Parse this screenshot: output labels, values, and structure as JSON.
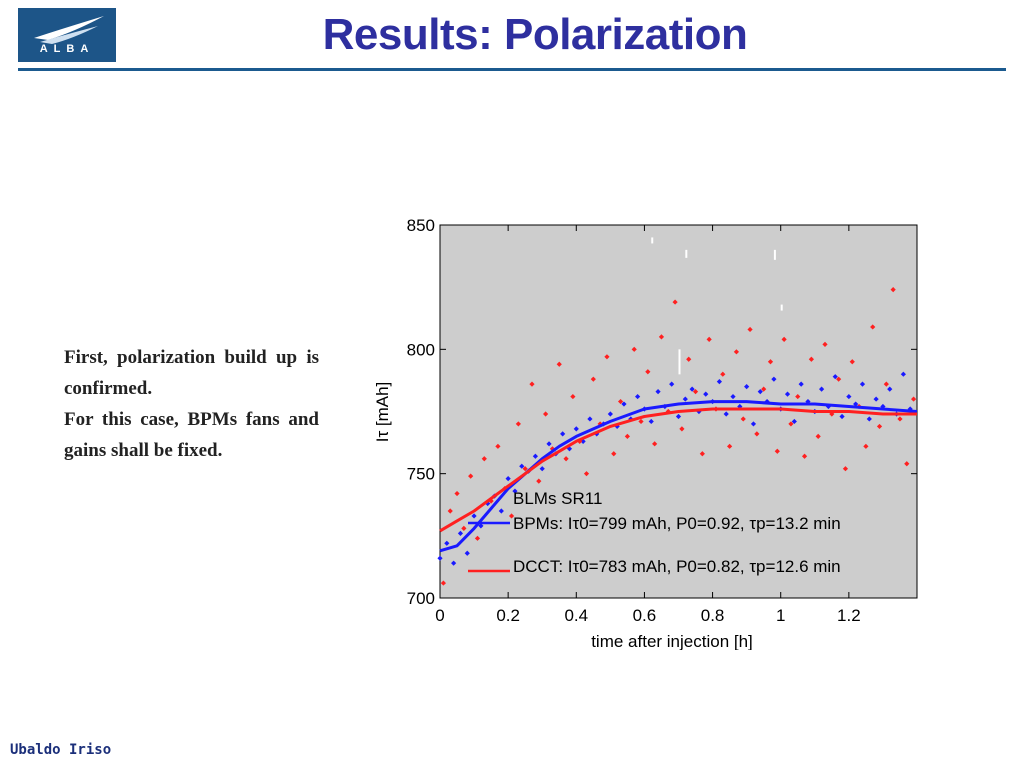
{
  "slide": {
    "logo_text": "ALBA",
    "title": "Results: Polarization",
    "body": [
      "First, polarization build up is confirmed.",
      "For this case, BPMs fans and gains shall be fixed."
    ],
    "footer": "Ubaldo Iriso"
  },
  "colors": {
    "title": "#2e2f9f",
    "rule": "#1b5a8f",
    "plot_background": "#cdcdcd",
    "bpm_series": "#1a1aff",
    "dcct_series": "#ff2020"
  },
  "chart_data": {
    "type": "scatter",
    "xlabel": "time after injection [h]",
    "ylabel": "Iτ [mAh]",
    "xlim": [
      0,
      1.4
    ],
    "ylim": [
      700,
      850
    ],
    "xticks": [
      "0",
      "0.2",
      "0.4",
      "0.6",
      "0.8",
      "1",
      "1.2"
    ],
    "yticks": [
      "700",
      "750",
      "800",
      "850"
    ],
    "legend": {
      "title": "BLMs SR11",
      "entries": [
        {
          "series": "BPMs",
          "label": "BPMs: Iτ0=799 mAh, P0=0.92, τp=13.2 min"
        },
        {
          "series": "DCCT",
          "label": "DCCT: Iτ0=783 mAh, P0=0.82, τp=12.6 min"
        }
      ]
    },
    "series": [
      {
        "name": "BPMs",
        "color": "#1a1aff",
        "fit": {
          "x": [
            0,
            0.05,
            0.1,
            0.15,
            0.2,
            0.25,
            0.3,
            0.35,
            0.4,
            0.5,
            0.6,
            0.7,
            0.8,
            0.9,
            1.0,
            1.1,
            1.2,
            1.3,
            1.4
          ],
          "y": [
            719,
            721,
            728,
            736,
            744,
            750,
            756,
            761,
            765,
            771,
            776,
            778,
            779,
            779,
            778,
            778,
            777,
            776,
            775
          ]
        },
        "points_x": [
          0.0,
          0.02,
          0.04,
          0.06,
          0.08,
          0.1,
          0.12,
          0.14,
          0.16,
          0.18,
          0.2,
          0.22,
          0.24,
          0.26,
          0.28,
          0.3,
          0.32,
          0.34,
          0.36,
          0.38,
          0.4,
          0.42,
          0.44,
          0.46,
          0.48,
          0.5,
          0.52,
          0.54,
          0.56,
          0.58,
          0.6,
          0.62,
          0.64,
          0.66,
          0.68,
          0.7,
          0.72,
          0.74,
          0.76,
          0.78,
          0.8,
          0.82,
          0.84,
          0.86,
          0.88,
          0.9,
          0.92,
          0.94,
          0.96,
          0.98,
          1.0,
          1.02,
          1.04,
          1.06,
          1.08,
          1.1,
          1.12,
          1.14,
          1.16,
          1.18,
          1.2,
          1.22,
          1.24,
          1.26,
          1.28,
          1.3,
          1.32,
          1.34,
          1.36,
          1.38
        ],
        "points_y": [
          716,
          722,
          714,
          726,
          718,
          733,
          729,
          738,
          741,
          735,
          748,
          743,
          753,
          751,
          757,
          752,
          762,
          758,
          766,
          760,
          768,
          763,
          772,
          766,
          770,
          774,
          769,
          778,
          772,
          781,
          776,
          771,
          783,
          777,
          786,
          773,
          780,
          784,
          775,
          782,
          779,
          787,
          774,
          781,
          777,
          785,
          770,
          783,
          779,
          788,
          776,
          782,
          771,
          786,
          779,
          775,
          784,
          777,
          789,
          773,
          781,
          778,
          786,
          772,
          780,
          777,
          784,
          774,
          790,
          776
        ]
      },
      {
        "name": "DCCT",
        "color": "#ff2020",
        "fit": {
          "x": [
            0,
            0.05,
            0.1,
            0.15,
            0.2,
            0.25,
            0.3,
            0.35,
            0.4,
            0.5,
            0.6,
            0.7,
            0.8,
            0.9,
            1.0,
            1.1,
            1.2,
            1.3,
            1.4
          ],
          "y": [
            727,
            731,
            735,
            740,
            745,
            750,
            755,
            759,
            763,
            769,
            773,
            775,
            776,
            776,
            776,
            775,
            775,
            774,
            774
          ]
        },
        "points_x": [
          0.01,
          0.03,
          0.05,
          0.07,
          0.09,
          0.11,
          0.13,
          0.15,
          0.17,
          0.19,
          0.21,
          0.23,
          0.25,
          0.27,
          0.29,
          0.31,
          0.33,
          0.35,
          0.37,
          0.39,
          0.41,
          0.43,
          0.45,
          0.47,
          0.49,
          0.51,
          0.53,
          0.55,
          0.57,
          0.59,
          0.61,
          0.63,
          0.65,
          0.67,
          0.69,
          0.71,
          0.73,
          0.75,
          0.77,
          0.79,
          0.81,
          0.83,
          0.85,
          0.87,
          0.89,
          0.91,
          0.93,
          0.95,
          0.97,
          0.99,
          1.01,
          1.03,
          1.05,
          1.07,
          1.09,
          1.11,
          1.13,
          1.15,
          1.17,
          1.19,
          1.21,
          1.23,
          1.25,
          1.27,
          1.29,
          1.31,
          1.33,
          1.35,
          1.37,
          1.39
        ],
        "points_y": [
          706,
          735,
          742,
          728,
          749,
          724,
          756,
          739,
          761,
          744,
          733,
          770,
          752,
          786,
          747,
          774,
          760,
          794,
          756,
          781,
          763,
          750,
          788,
          770,
          797,
          758,
          779,
          765,
          800,
          771,
          791,
          762,
          805,
          775,
          819,
          768,
          796,
          783,
          758,
          804,
          776,
          790,
          761,
          799,
          772,
          808,
          766,
          784,
          795,
          759,
          804,
          770,
          781,
          757,
          796,
          765,
          802,
          774,
          788,
          752,
          795,
          777,
          761,
          809,
          769,
          786,
          824,
          772,
          754,
          780
        ]
      }
    ]
  }
}
